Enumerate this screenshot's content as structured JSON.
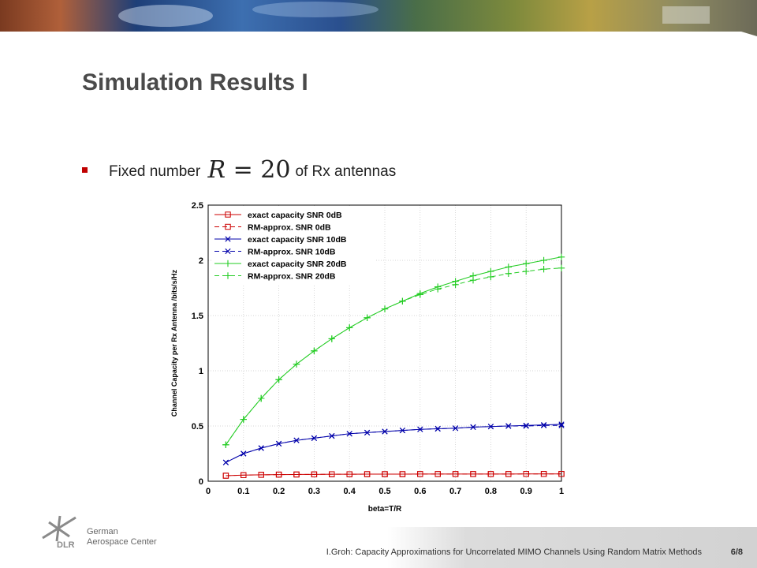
{
  "slide": {
    "title": "Simulation Results I",
    "bullet": {
      "text_before": "Fixed number",
      "math_var": "R",
      "math_eq": " = 20",
      "text_after": "of Rx antennas"
    },
    "footer": {
      "org_line1": "German",
      "org_line2": "Aerospace Center",
      "logo_text": "DLR",
      "citation": "I.Groh: Capacity Approximations for Uncorrelated MIMO Channels Using Random Matrix Methods",
      "page": "6/8"
    }
  },
  "chart_data": {
    "type": "line",
    "title": "",
    "xlabel": "beta=T/R",
    "ylabel": "Channel Capacity per Rx Antenna /bits/s/Hz",
    "xlim": [
      0,
      1
    ],
    "ylim": [
      0,
      2.5
    ],
    "xticks": [
      "0",
      "0.1",
      "0.2",
      "0.3",
      "0.4",
      "0.5",
      "0.6",
      "0.7",
      "0.8",
      "0.9",
      "1"
    ],
    "yticks": [
      "0",
      "0.5",
      "1",
      "1.5",
      "2",
      "2.5"
    ],
    "grid": true,
    "legend_position": "top-left",
    "x": [
      0.05,
      0.1,
      0.15,
      0.2,
      0.25,
      0.3,
      0.35,
      0.4,
      0.45,
      0.5,
      0.55,
      0.6,
      0.65,
      0.7,
      0.75,
      0.8,
      0.85,
      0.9,
      0.95,
      1.0
    ],
    "series": [
      {
        "name": "exact capacity SNR 0dB",
        "color": "#cc0000",
        "dash": "solid",
        "marker": "square",
        "values": [
          0.05,
          0.055,
          0.058,
          0.06,
          0.061,
          0.062,
          0.063,
          0.063,
          0.064,
          0.064,
          0.064,
          0.065,
          0.065,
          0.065,
          0.065,
          0.065,
          0.065,
          0.066,
          0.066,
          0.066
        ]
      },
      {
        "name": "RM-approx. SNR 0dB",
        "color": "#cc0000",
        "dash": "dashed",
        "marker": "square",
        "values": [
          0.05,
          0.055,
          0.058,
          0.06,
          0.061,
          0.062,
          0.063,
          0.063,
          0.064,
          0.064,
          0.064,
          0.065,
          0.065,
          0.065,
          0.065,
          0.065,
          0.065,
          0.066,
          0.066,
          0.066
        ]
      },
      {
        "name": "exact capacity SNR 10dB",
        "color": "#0000aa",
        "dash": "solid",
        "marker": "x",
        "values": [
          0.17,
          0.25,
          0.3,
          0.34,
          0.37,
          0.39,
          0.41,
          0.43,
          0.44,
          0.45,
          0.46,
          0.47,
          0.475,
          0.48,
          0.49,
          0.495,
          0.5,
          0.505,
          0.51,
          0.515
        ]
      },
      {
        "name": "RM-approx. SNR 10dB",
        "color": "#0000aa",
        "dash": "dashed",
        "marker": "x",
        "values": [
          0.17,
          0.25,
          0.3,
          0.34,
          0.37,
          0.39,
          0.41,
          0.43,
          0.44,
          0.45,
          0.46,
          0.47,
          0.475,
          0.48,
          0.49,
          0.495,
          0.5,
          0.5,
          0.505,
          0.505
        ]
      },
      {
        "name": "exact capacity SNR 20dB",
        "color": "#22cc22",
        "dash": "solid",
        "marker": "plus",
        "values": [
          0.33,
          0.56,
          0.75,
          0.92,
          1.06,
          1.18,
          1.29,
          1.39,
          1.48,
          1.56,
          1.63,
          1.7,
          1.76,
          1.81,
          1.86,
          1.9,
          1.94,
          1.97,
          2.0,
          2.03
        ]
      },
      {
        "name": "RM-approx. SNR 20dB",
        "color": "#22cc22",
        "dash": "dashed",
        "marker": "plus",
        "values": [
          0.33,
          0.56,
          0.75,
          0.92,
          1.06,
          1.18,
          1.29,
          1.39,
          1.48,
          1.56,
          1.63,
          1.69,
          1.74,
          1.78,
          1.82,
          1.85,
          1.88,
          1.9,
          1.92,
          1.93
        ]
      }
    ]
  }
}
